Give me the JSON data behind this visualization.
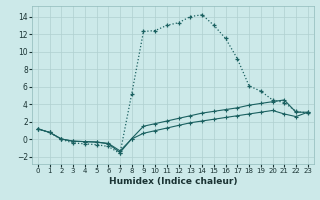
{
  "xlabel": "Humidex (Indice chaleur)",
  "background_color": "#cce9e9",
  "grid_color": "#b0d0d0",
  "line_color": "#1a6060",
  "xlim": [
    -0.5,
    23.5
  ],
  "ylim": [
    -2.8,
    15.2
  ],
  "xticks": [
    0,
    1,
    2,
    3,
    4,
    5,
    6,
    7,
    8,
    9,
    10,
    11,
    12,
    13,
    14,
    15,
    16,
    17,
    18,
    19,
    20,
    21,
    22,
    23
  ],
  "yticks": [
    -2,
    0,
    2,
    4,
    6,
    8,
    10,
    12,
    14
  ],
  "series1_x": [
    0,
    1,
    2,
    3,
    4,
    5,
    6,
    7,
    8,
    9,
    10,
    11,
    12,
    13,
    14,
    15,
    16,
    17,
    18,
    19,
    20,
    21,
    22,
    23
  ],
  "series1_y": [
    1.2,
    0.8,
    0.0,
    -0.4,
    -0.5,
    -0.6,
    -0.8,
    -1.6,
    5.2,
    12.3,
    12.4,
    13.0,
    13.3,
    14.0,
    14.2,
    13.0,
    11.5,
    9.2,
    6.1,
    5.5,
    4.5,
    4.2,
    3.2,
    3.0
  ],
  "series2_x": [
    0,
    1,
    2,
    3,
    4,
    5,
    6,
    7,
    8,
    9,
    10,
    11,
    12,
    13,
    14,
    15,
    16,
    17,
    18,
    19,
    20,
    21,
    22,
    23
  ],
  "series2_y": [
    1.2,
    0.8,
    0.05,
    -0.2,
    -0.25,
    -0.3,
    -0.5,
    -1.5,
    0.1,
    1.5,
    1.8,
    2.1,
    2.4,
    2.7,
    3.0,
    3.2,
    3.4,
    3.6,
    3.9,
    4.1,
    4.3,
    4.5,
    3.1,
    3.1
  ],
  "series3_x": [
    0,
    1,
    2,
    3,
    4,
    5,
    6,
    7,
    8,
    9,
    10,
    11,
    12,
    13,
    14,
    15,
    16,
    17,
    18,
    19,
    20,
    21,
    22,
    23
  ],
  "series3_y": [
    1.2,
    0.8,
    0.05,
    -0.2,
    -0.25,
    -0.3,
    -0.45,
    -1.3,
    0.05,
    0.7,
    1.0,
    1.3,
    1.6,
    1.9,
    2.1,
    2.3,
    2.5,
    2.7,
    2.9,
    3.1,
    3.3,
    2.9,
    2.6,
    3.1
  ]
}
